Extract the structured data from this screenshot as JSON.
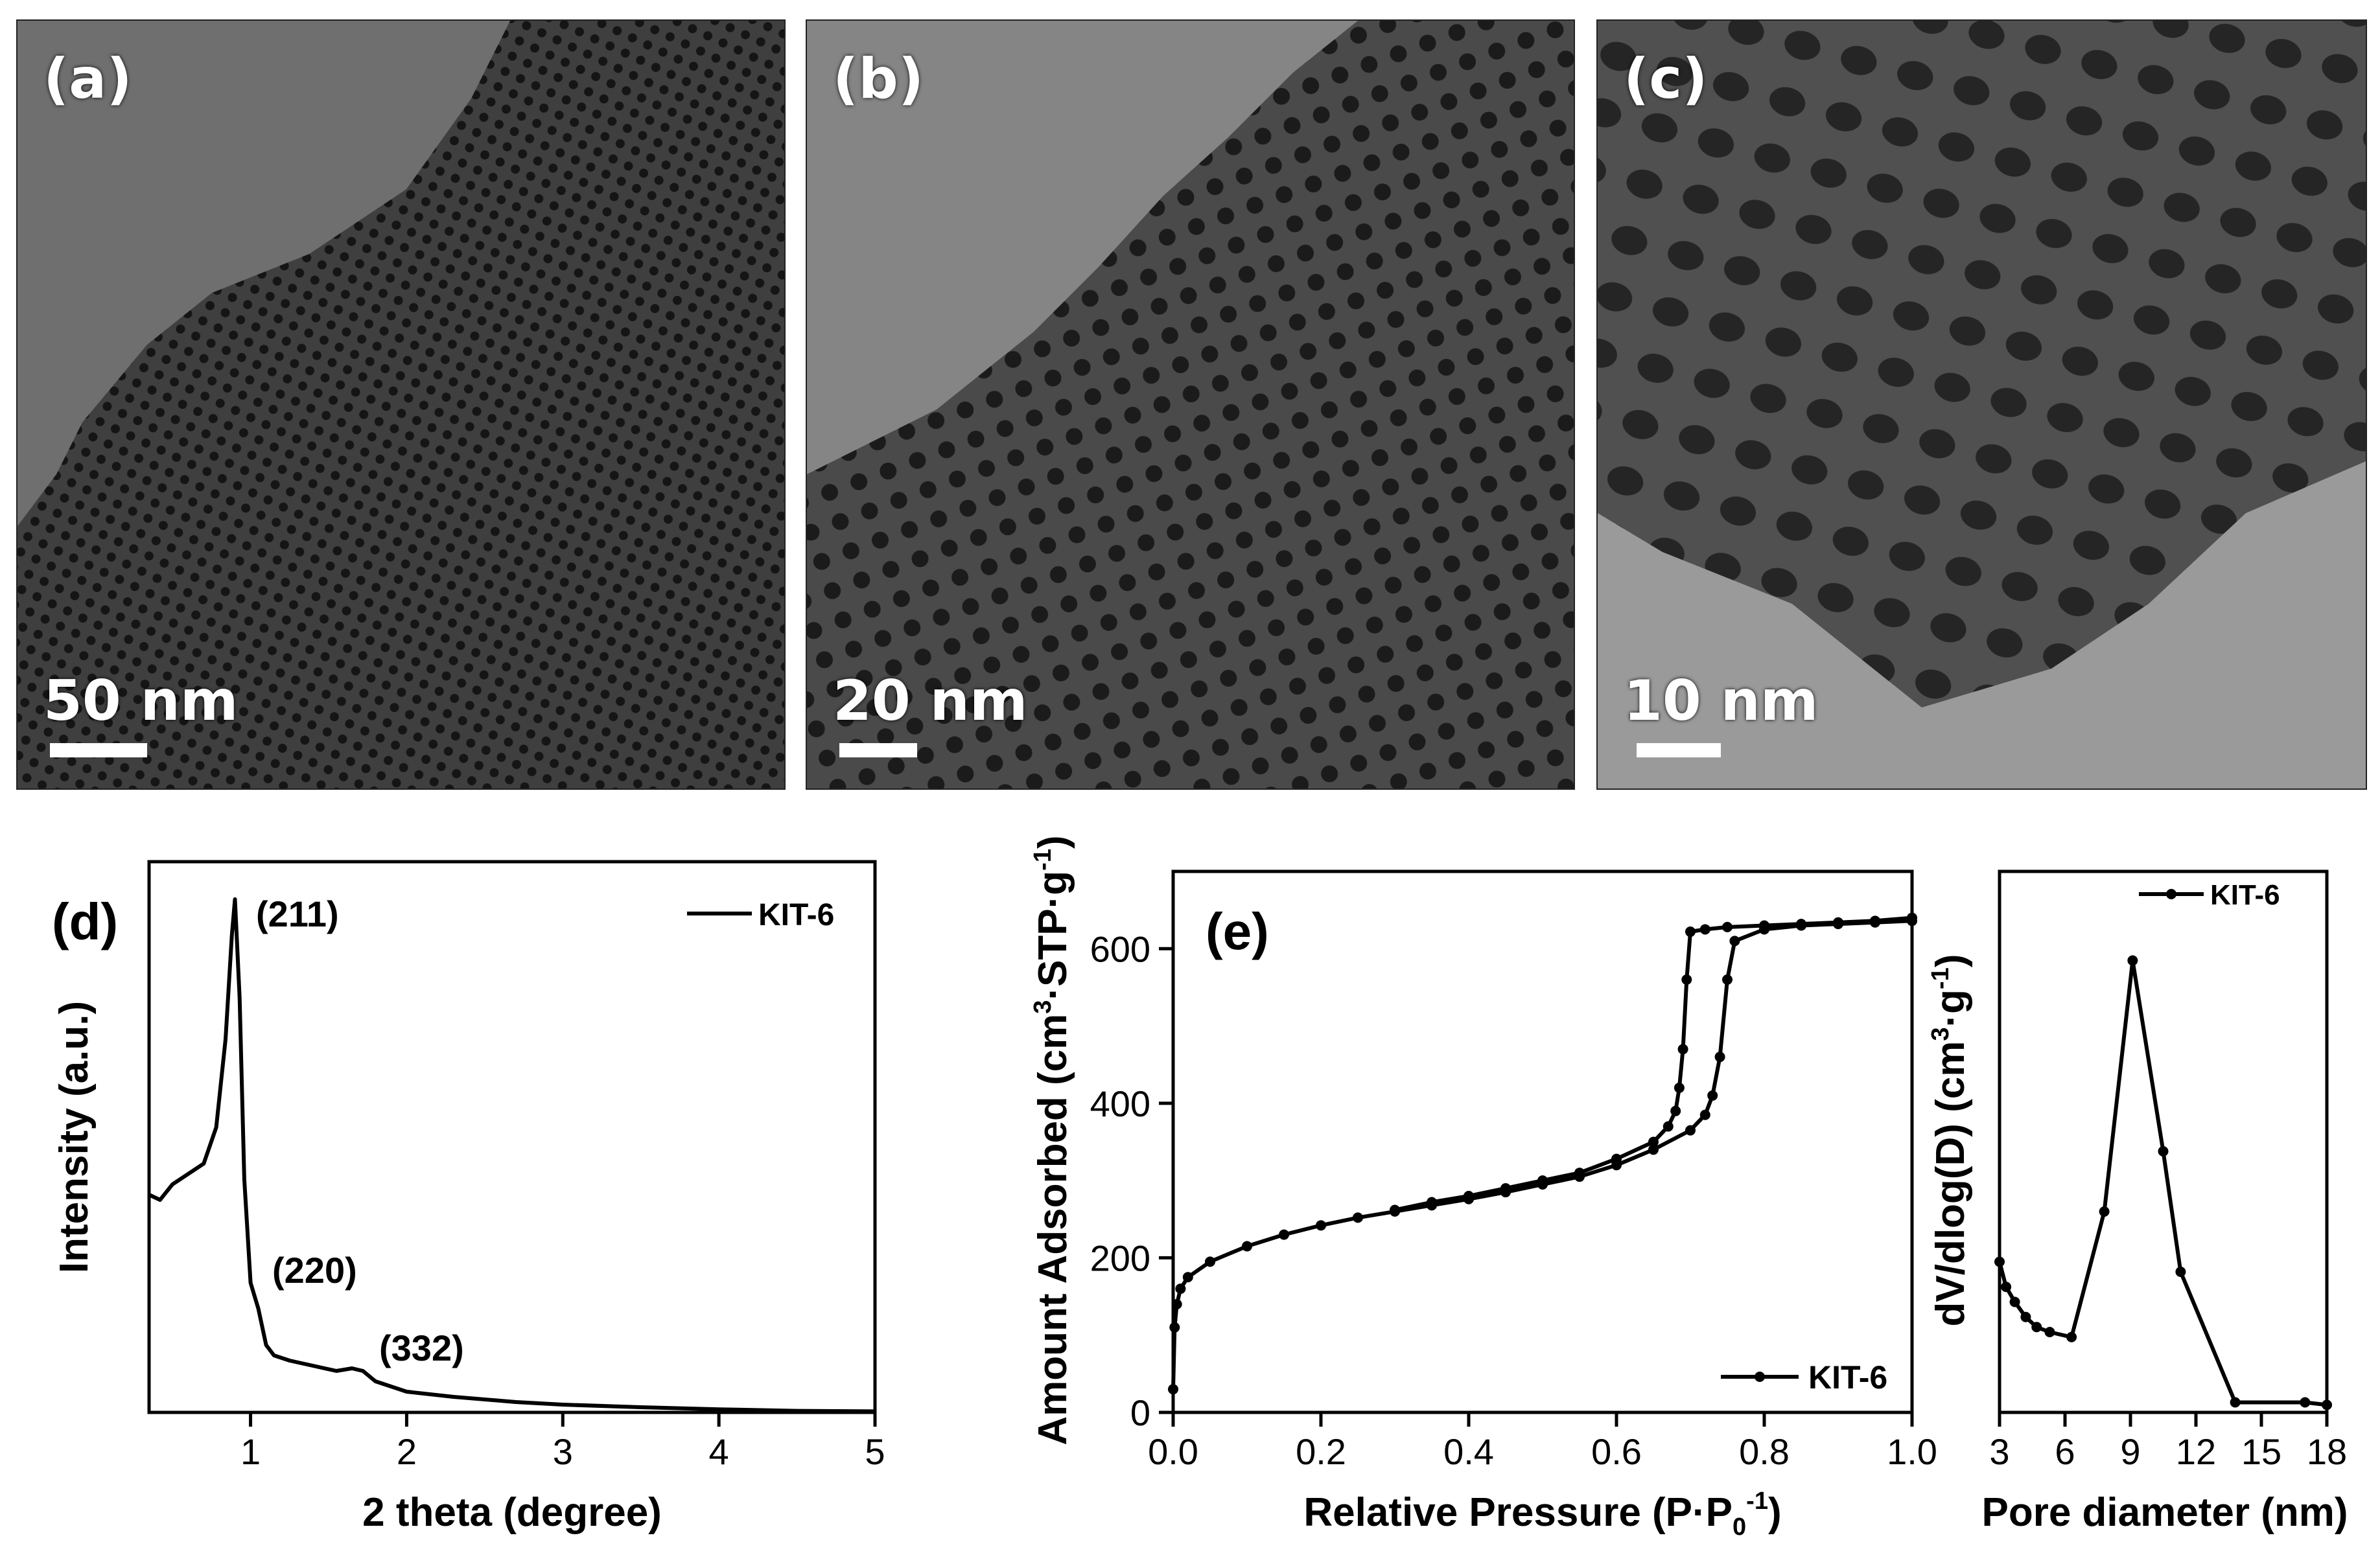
{
  "tem_panels": [
    {
      "label": "(a)",
      "scale": "50 nm"
    },
    {
      "label": "(b)",
      "scale": "20 nm"
    },
    {
      "label": "(c)",
      "scale": "10 nm"
    }
  ],
  "chart_data": [
    {
      "panel": "(d)",
      "type": "line",
      "xlabel": "2 theta (degree)",
      "ylabel": "Intensity (a.u.)",
      "xlim": [
        0.35,
        5
      ],
      "ylim": [
        0,
        100
      ],
      "xticks": [
        "1",
        "2",
        "3",
        "4",
        "5"
      ],
      "legend": "top-right",
      "series": [
        {
          "name": "KIT-6",
          "x": [
            0.35,
            0.42,
            0.5,
            0.6,
            0.7,
            0.78,
            0.84,
            0.88,
            0.9,
            0.93,
            0.96,
            1.0,
            1.05,
            1.1,
            1.15,
            1.25,
            1.4,
            1.55,
            1.65,
            1.72,
            1.8,
            2.0,
            2.3,
            2.7,
            3.0,
            3.5,
            4.0,
            4.5,
            5.0
          ],
          "y": [
            42,
            41,
            44,
            46,
            48,
            55,
            72,
            92,
            99,
            80,
            45,
            25,
            20,
            13,
            11,
            10,
            9,
            8,
            8.5,
            8,
            6,
            4,
            3,
            2,
            1.5,
            1,
            0.6,
            0.3,
            0.2
          ]
        }
      ],
      "annotations": [
        "(211)",
        "(220)",
        "(332)"
      ]
    },
    {
      "panel": "(e)",
      "type": "line",
      "xlabel": "Relative Pressure (P·P0-1)",
      "ylabel": "Amount Adsorbed (cm3·STP·g-1)",
      "xlim": [
        0,
        1.0
      ],
      "ylim": [
        0,
        700
      ],
      "xticks": [
        "0.0",
        "0.2",
        "0.4",
        "0.6",
        "0.8",
        "1.0"
      ],
      "yticks": [
        "0",
        "200",
        "400",
        "600"
      ],
      "legend": "bottom-right",
      "series": [
        {
          "name": "KIT-6",
          "adsorption": {
            "x": [
              0.0,
              0.002,
              0.005,
              0.01,
              0.02,
              0.05,
              0.1,
              0.15,
              0.2,
              0.25,
              0.3,
              0.35,
              0.4,
              0.45,
              0.5,
              0.55,
              0.6,
              0.65,
              0.7,
              0.72,
              0.73,
              0.74,
              0.75,
              0.76,
              0.8,
              0.85,
              0.9,
              0.95,
              1.0
            ],
            "y": [
              30,
              110,
              140,
              160,
              175,
              195,
              215,
              230,
              242,
              252,
              260,
              268,
              276,
              285,
              295,
              305,
              320,
              340,
              365,
              385,
              410,
              460,
              560,
              610,
              625,
              630,
              632,
              634,
              636
            ]
          },
          "desorption": {
            "x": [
              1.0,
              0.95,
              0.9,
              0.85,
              0.8,
              0.75,
              0.72,
              0.7,
              0.695,
              0.69,
              0.685,
              0.68,
              0.67,
              0.65,
              0.6,
              0.55,
              0.5,
              0.45,
              0.4,
              0.35,
              0.3
            ],
            "y": [
              640,
              636,
              634,
              632,
              630,
              628,
              625,
              622,
              560,
              470,
              420,
              390,
              370,
              350,
              328,
              310,
              300,
              290,
              280,
              272,
              262
            ]
          }
        }
      ]
    },
    {
      "panel": "",
      "type": "line",
      "xlabel": "Pore diameter (nm)",
      "ylabel": "dV/dlog(D) (cm3·g-1)",
      "xlim": [
        3,
        18
      ],
      "ylim": [
        0,
        100
      ],
      "xticks": [
        "3",
        "6",
        "9",
        "12",
        "15",
        "18"
      ],
      "legend": "top-right",
      "series": [
        {
          "name": "KIT-6",
          "x": [
            3.0,
            3.3,
            3.7,
            4.2,
            4.7,
            5.3,
            6.3,
            7.8,
            9.1,
            10.5,
            11.3,
            13.8,
            17.0,
            18.0
          ],
          "y": [
            30,
            25,
            22,
            19,
            17,
            16,
            15,
            40,
            90,
            52,
            28,
            2,
            2,
            1.5
          ]
        }
      ]
    }
  ]
}
